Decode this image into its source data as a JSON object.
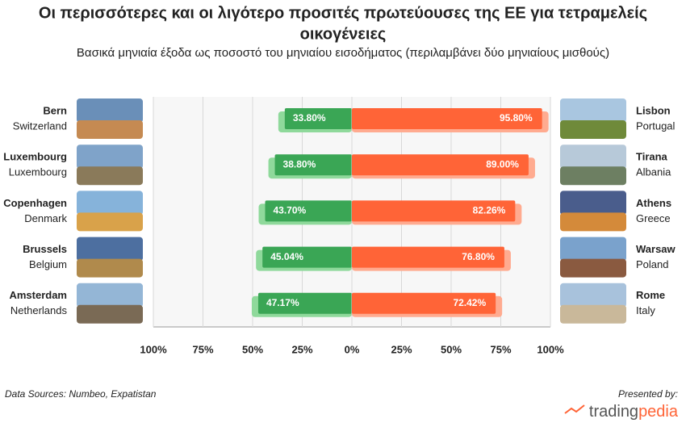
{
  "title": [
    "Οι περισσότερες και οι λιγότερο προσιτές πρωτεύουσες της ΕΕ για τετραμελείς",
    "οικογένειες"
  ],
  "subtitle": "Βασικά μηνιαία έξοδα ως ποσοστό του μηνιαίου εισοδήματος (περιλαμβάνει δύο μηνιαίους μισθούς)",
  "source": "Data Sources: Numbeo, Expatistan",
  "presented_by": "Presented by:",
  "logo": [
    "trading",
    "pedia"
  ],
  "chart_data": [
    {
      "type": "bar",
      "side": "left",
      "categories": [
        "Bern",
        "Luxembourg",
        "Copenhagen",
        "Brussels",
        "Amsterdam"
      ],
      "countries": [
        "Switzerland",
        "Luxembourg",
        "Denmark",
        "Belgium",
        "Netherlands"
      ],
      "values": [
        33.8,
        38.8,
        43.7,
        45.04,
        47.17
      ],
      "value_labels": [
        "33.80%",
        "38.80%",
        "43.70%",
        "45.04%",
        "47.17%"
      ],
      "color": "#3aa655",
      "shadow_color": "#8fd99b",
      "xlim": [
        100,
        0
      ],
      "xticks": [
        {
          "value": 100,
          "label": "100%"
        },
        {
          "value": 75,
          "label": "75%"
        },
        {
          "value": 50,
          "label": "50%"
        },
        {
          "value": 25,
          "label": "25%"
        }
      ],
      "grid": true
    },
    {
      "type": "bar",
      "side": "right",
      "categories": [
        "Lisbon",
        "Tirana",
        "Athens",
        "Warsaw",
        "Rome"
      ],
      "countries": [
        "Portugal",
        "Albania",
        "Greece",
        "Poland",
        "Italy"
      ],
      "values": [
        95.8,
        89.0,
        82.26,
        76.8,
        72.42
      ],
      "value_labels": [
        "95.80%",
        "89.00%",
        "82.26%",
        "76.80%",
        "72.42%"
      ],
      "color": "#ff6437",
      "shadow_color": "#ffab90",
      "xlim": [
        0,
        100
      ],
      "xticks": [
        {
          "value": 0,
          "label": "0%"
        },
        {
          "value": 25,
          "label": "25%"
        },
        {
          "value": 50,
          "label": "50%"
        },
        {
          "value": 75,
          "label": "75%"
        },
        {
          "value": 100,
          "label": "100%"
        }
      ],
      "grid": true
    }
  ]
}
